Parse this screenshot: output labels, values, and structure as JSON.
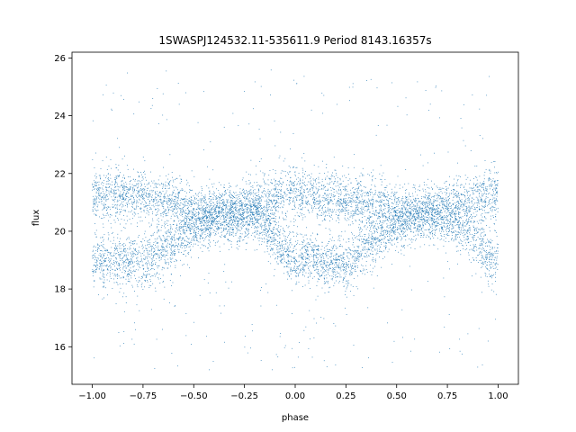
{
  "chart_data": {
    "type": "scatter",
    "title": "1SWASPJ124532.11-535611.9 Period 8143.16357s",
    "xlabel": "phase",
    "ylabel": "flux",
    "xlim": [
      -1.1,
      1.1
    ],
    "ylim": [
      14.7,
      26.2
    ],
    "xticks": [
      -1.0,
      -0.75,
      -0.5,
      -0.25,
      0.0,
      0.25,
      0.5,
      0.75,
      1.0
    ],
    "xtick_labels": [
      "−1.00",
      "−0.75",
      "−0.50",
      "−0.25",
      "0.00",
      "0.25",
      "0.50",
      "0.75",
      "1.00"
    ],
    "yticks": [
      16,
      18,
      20,
      22,
      24,
      26
    ],
    "ytick_labels": [
      "16",
      "18",
      "20",
      "22",
      "24",
      "26"
    ],
    "grid": false,
    "point_color": "#1f77b4",
    "series": [
      {
        "x_range": [
          -1.0,
          1.0
        ],
        "point_count": 9000,
        "outlier_fraction": 0.04,
        "branches": [
          {
            "center": [
              [
                -1.0,
                21.3
              ],
              [
                -0.75,
                21.2
              ],
              [
                -0.6,
                21.0
              ],
              [
                -0.5,
                20.7
              ],
              [
                -0.35,
                20.6
              ],
              [
                -0.2,
                21.0
              ],
              [
                0.0,
                21.3
              ],
              [
                0.25,
                21.1
              ],
              [
                0.4,
                20.9
              ],
              [
                0.5,
                20.7
              ],
              [
                0.65,
                20.6
              ],
              [
                0.8,
                21.0
              ],
              [
                1.0,
                21.3
              ]
            ],
            "spread": 0.45,
            "weight": 0.5
          },
          {
            "center": [
              [
                -1.0,
                19.0
              ],
              [
                -0.75,
                18.9
              ],
              [
                -0.6,
                19.5
              ],
              [
                -0.5,
                20.2
              ],
              [
                -0.35,
                20.6
              ],
              [
                -0.2,
                20.4
              ],
              [
                0.0,
                19.1
              ],
              [
                0.25,
                18.9
              ],
              [
                0.4,
                19.7
              ],
              [
                0.5,
                20.3
              ],
              [
                0.65,
                20.6
              ],
              [
                0.8,
                20.2
              ],
              [
                1.0,
                19.0
              ]
            ],
            "spread": 0.45,
            "weight": 0.5
          }
        ]
      }
    ]
  }
}
